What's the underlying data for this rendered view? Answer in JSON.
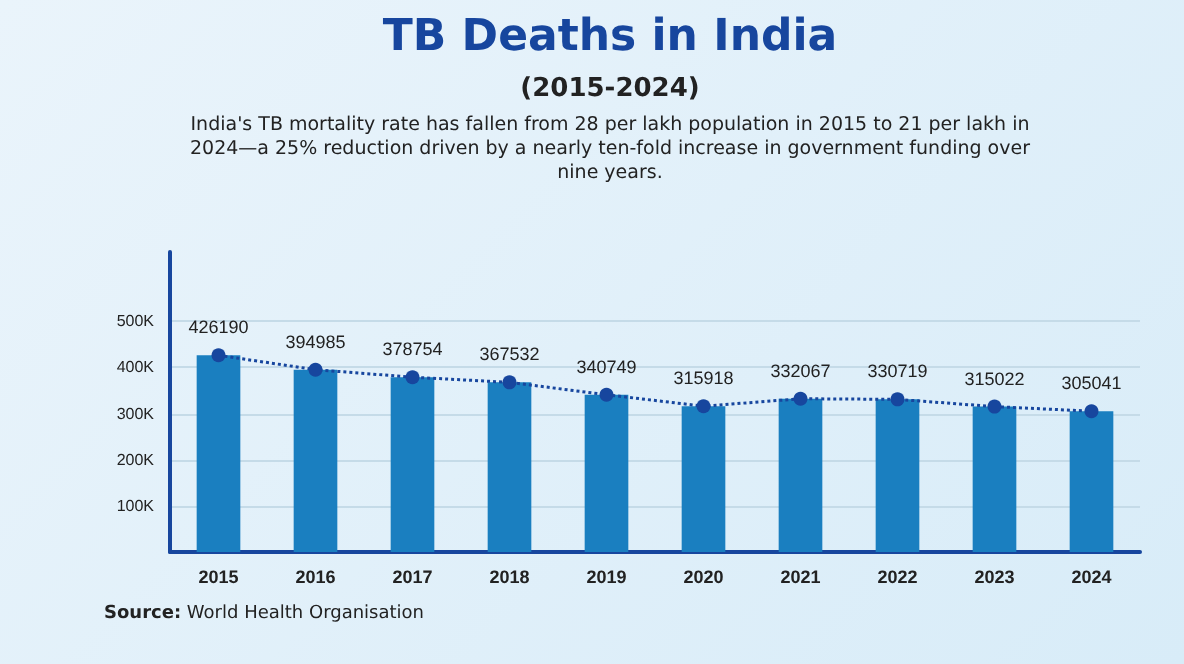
{
  "chart_data": {
    "type": "bar",
    "title": "TB Deaths in India",
    "subtitle": "(2015-2024)",
    "annotations": [
      "India's TB mortality rate has fallen from 28 per lakh population in 2015 to 21 per lakh in 2024—a 25% reduction driven by a nearly ten-fold increase in government funding over nine years.",
      "Source: World Health Organisation"
    ],
    "categories": [
      "2015",
      "2016",
      "2017",
      "2018",
      "2019",
      "2020",
      "2021",
      "2022",
      "2023",
      "2024"
    ],
    "series": [
      {
        "color": "#1a7fc0",
        "values": [
          426190,
          394985,
          378754,
          367532,
          340749,
          315918,
          332067,
          330719,
          315022,
          305041
        ]
      },
      {
        "type": "line",
        "color": "#17469e",
        "values": [
          426190,
          394985,
          378754,
          367532,
          340749,
          315918,
          332067,
          330719,
          315022,
          305041
        ],
        "line_style": "dotted",
        "marker": "circle",
        "value_labels": [
          "426190",
          "394985",
          "378754",
          "367532",
          "340749",
          "315918",
          "332067",
          "330719",
          "315022",
          "305041"
        ]
      }
    ],
    "ylim": [
      0,
      650000
    ],
    "yticks": [
      {
        "value": 100000,
        "label": "100K"
      },
      {
        "value": 200000,
        "label": "200K"
      },
      {
        "value": 300000,
        "label": "300K"
      },
      {
        "value": 400000,
        "label": "400K"
      },
      {
        "value": 500000,
        "label": "500K"
      }
    ],
    "grid": "y"
  }
}
